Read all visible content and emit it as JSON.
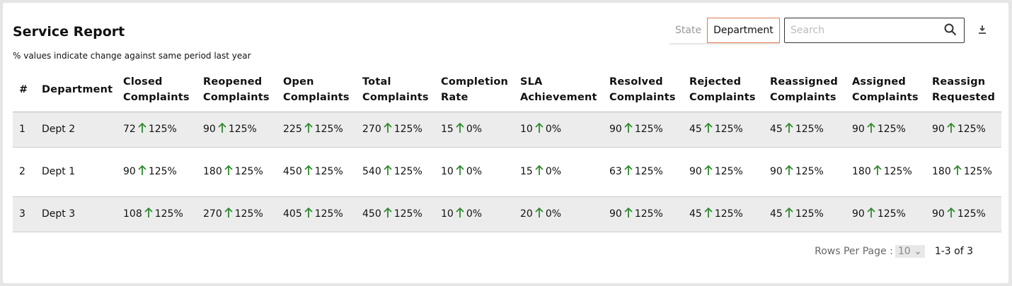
{
  "header": {
    "title": "Service Report",
    "subtitle": "% values indicate change against same period last year"
  },
  "toggle": [
    "State",
    "Department"
  ],
  "search": {
    "placeholder": "Search"
  },
  "table": {
    "columns": [
      "#",
      "Department",
      "Closed Complaints",
      "Reopened Complaints",
      "Open Complaints",
      "Total Complaints",
      "Completion Rate",
      "SLA Achievement",
      "Resolved Complaints",
      "Rejected Complaints",
      "Reassigned Complaints",
      "Assigned Complaints",
      "Reassign Requested"
    ],
    "rows": [
      {
        "index": 1,
        "department": "Dept 2",
        "cells": [
          {
            "value": 72,
            "change": "125%"
          },
          {
            "value": 90,
            "change": "125%"
          },
          {
            "value": 225,
            "change": "125%"
          },
          {
            "value": 270,
            "change": "125%"
          },
          {
            "value": 15,
            "change": "0%"
          },
          {
            "value": 10,
            "change": "0%"
          },
          {
            "value": 90,
            "change": "125%"
          },
          {
            "value": 45,
            "change": "125%"
          },
          {
            "value": 45,
            "change": "125%"
          },
          {
            "value": 90,
            "change": "125%"
          },
          {
            "value": 90,
            "change": "125%"
          }
        ]
      },
      {
        "index": 2,
        "department": "Dept 1",
        "cells": [
          {
            "value": 90,
            "change": "125%"
          },
          {
            "value": 180,
            "change": "125%"
          },
          {
            "value": 450,
            "change": "125%"
          },
          {
            "value": 540,
            "change": "125%"
          },
          {
            "value": 10,
            "change": "0%"
          },
          {
            "value": 15,
            "change": "0%"
          },
          {
            "value": 63,
            "change": "125%"
          },
          {
            "value": 90,
            "change": "125%"
          },
          {
            "value": 90,
            "change": "125%"
          },
          {
            "value": 180,
            "change": "125%"
          },
          {
            "value": 180,
            "change": "125%"
          }
        ]
      },
      {
        "index": 3,
        "department": "Dept 3",
        "cells": [
          {
            "value": 108,
            "change": "125%"
          },
          {
            "value": 270,
            "change": "125%"
          },
          {
            "value": 405,
            "change": "125%"
          },
          {
            "value": 450,
            "change": "125%"
          },
          {
            "value": 10,
            "change": "0%"
          },
          {
            "value": 20,
            "change": "0%"
          },
          {
            "value": 90,
            "change": "125%"
          },
          {
            "value": 45,
            "change": "125%"
          },
          {
            "value": 45,
            "change": "125%"
          },
          {
            "value": 90,
            "change": "125%"
          },
          {
            "value": 90,
            "change": "125%"
          }
        ]
      }
    ]
  },
  "footer": {
    "rows_per_page_label": "Rows Per Page :",
    "rows_per_page": "10",
    "range": "1-3 of 3"
  }
}
